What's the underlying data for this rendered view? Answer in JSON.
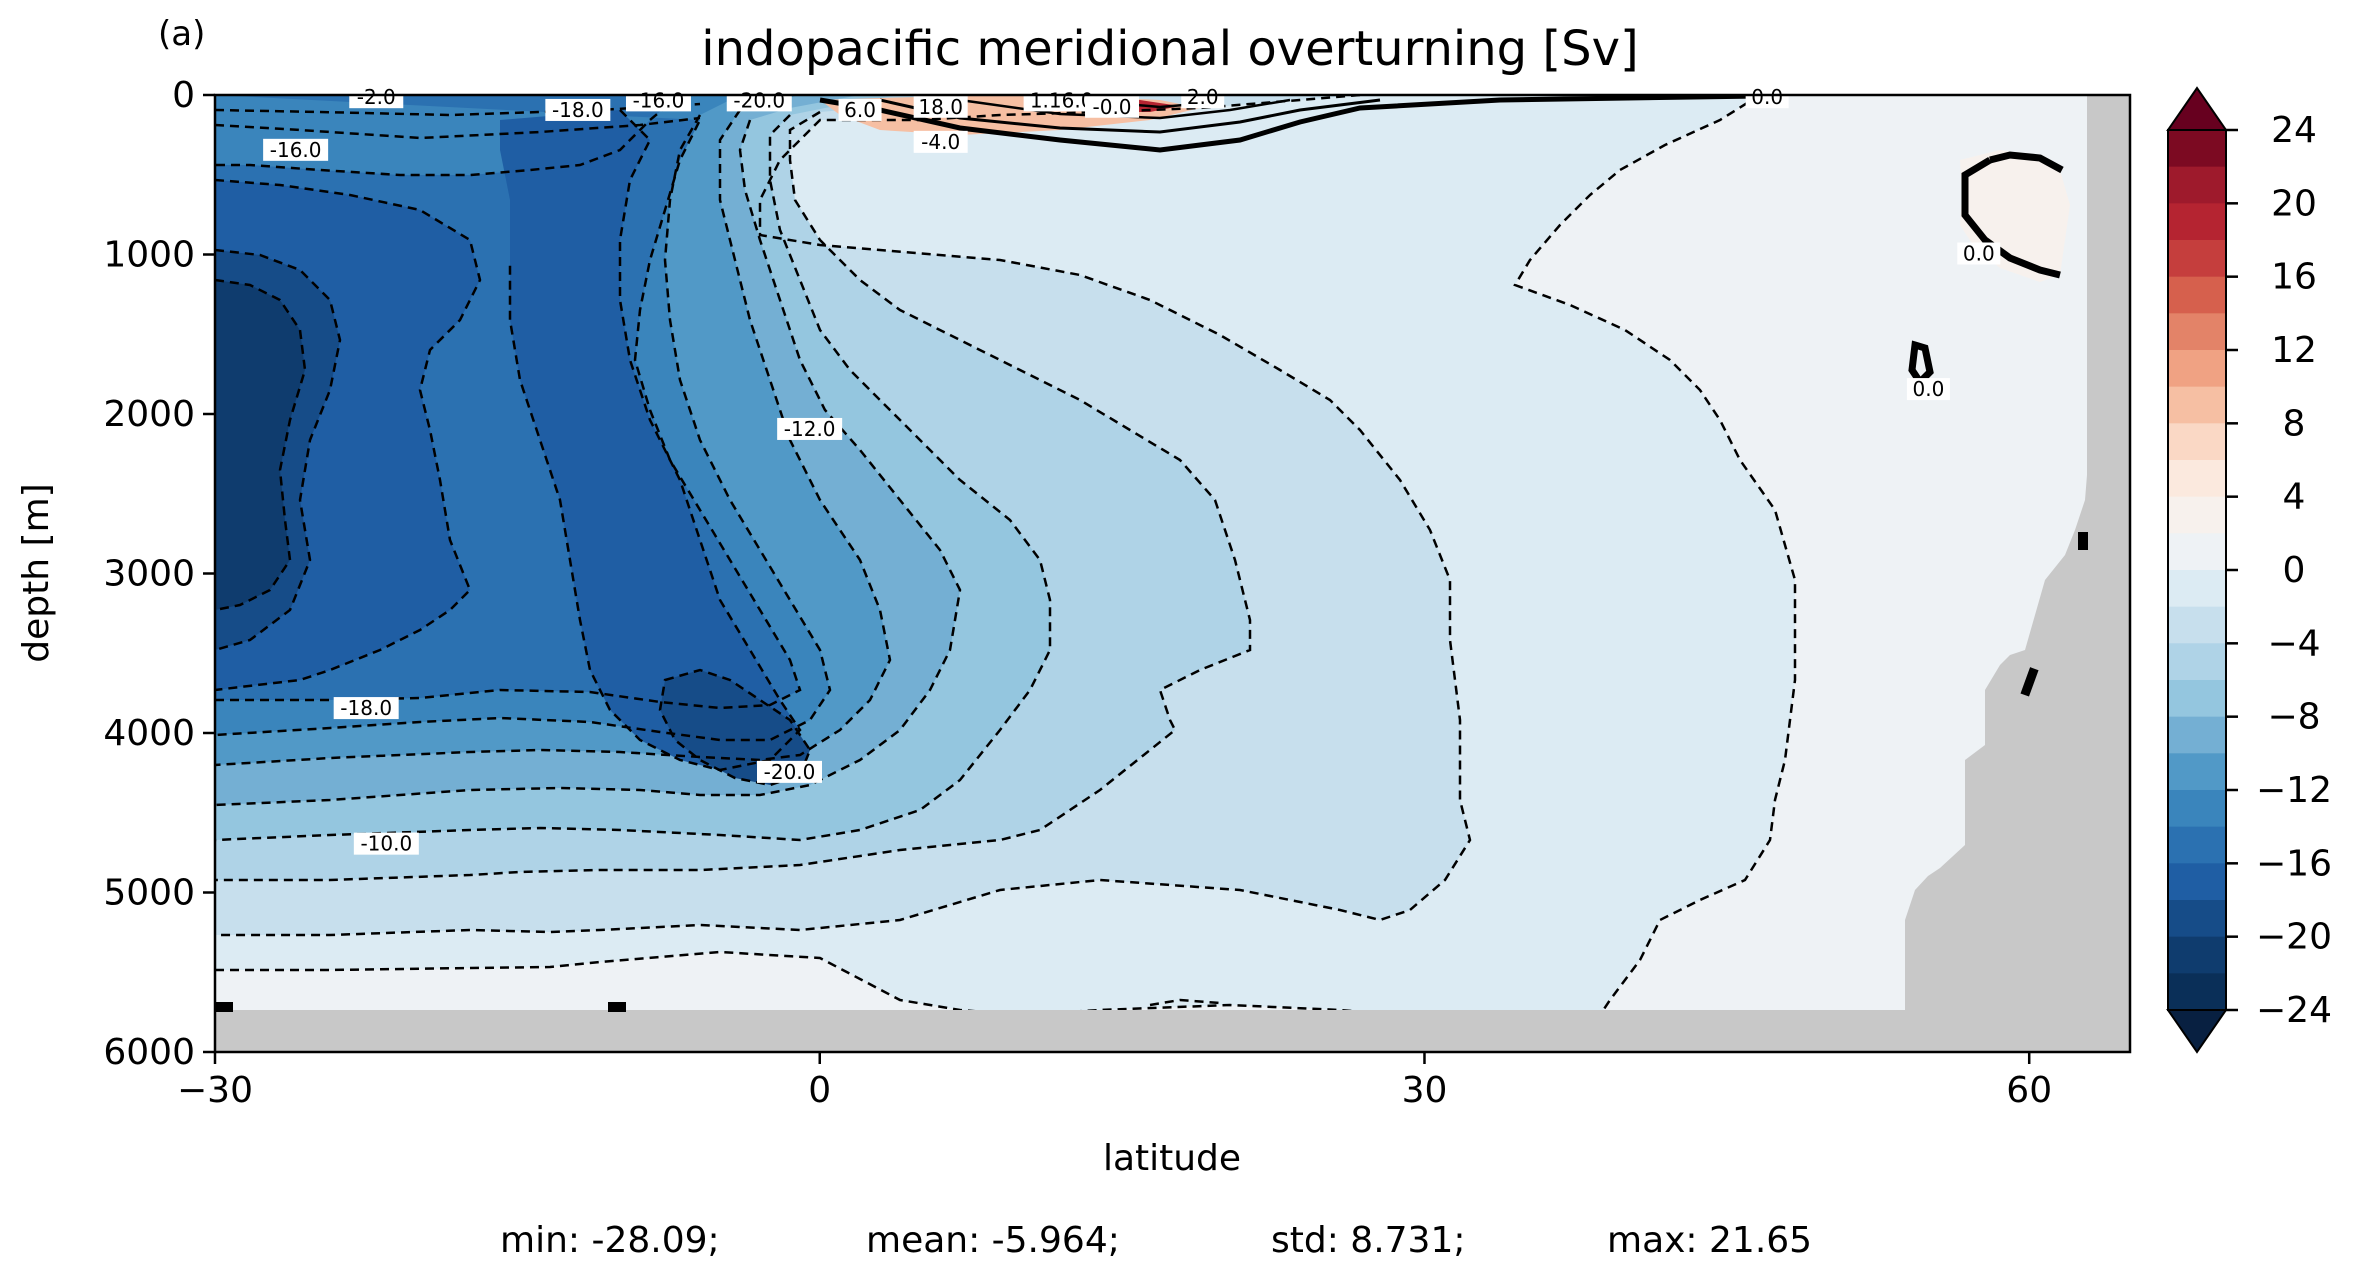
{
  "panel_label": "(a)",
  "chart_data": {
    "type": "heatmap",
    "title": "indopacific meridional overturning [Sv]",
    "xlabel": "latitude",
    "ylabel": "depth [m]",
    "xlim": [
      -30,
      65
    ],
    "ylim": [
      6000,
      0
    ],
    "y_inverted": true,
    "x_ticks": [
      -30,
      0,
      30,
      60
    ],
    "x_tick_labels": [
      "−30",
      "0",
      "30",
      "60"
    ],
    "y_ticks": [
      0,
      1000,
      2000,
      3000,
      4000,
      5000,
      6000
    ],
    "y_tick_labels": [
      "0",
      "1000",
      "2000",
      "3000",
      "4000",
      "5000",
      "6000"
    ],
    "colormap": "RdBu_r",
    "colorbar": {
      "min": -24,
      "max": 24,
      "step": 2,
      "extend": "both",
      "ticks": [
        24,
        20,
        16,
        12,
        8,
        4,
        0,
        -4,
        -8,
        -12,
        -16,
        -20,
        -24
      ],
      "tick_labels": [
        "24",
        "20",
        "16",
        "12",
        "8",
        "4",
        "0",
        "−4",
        "−8",
        "−12",
        "−16",
        "−20",
        "−24"
      ],
      "colors_high_to_low": [
        "#7c0a22",
        "#9e1a2c",
        "#b52431",
        "#c53e3d",
        "#d6604d",
        "#e38368",
        "#f0a283",
        "#f6bfa3",
        "#fad8c5",
        "#fbe9de",
        "#f7f1ed",
        "#eef2f5",
        "#dcebf3",
        "#c7dfed",
        "#afd3e7",
        "#94c6df",
        "#74afd3",
        "#5199c7",
        "#3a85bc",
        "#2b71b1",
        "#1f5ea4",
        "#164c88",
        "#0f3c6e",
        "#0a2f58"
      ]
    },
    "contour_labels": [
      {
        "lat": -22,
        "depth": 20,
        "text": "-2.0"
      },
      {
        "lat": -12,
        "depth": 100,
        "text": "-18.0"
      },
      {
        "lat": -8,
        "depth": 40,
        "text": "-16.0"
      },
      {
        "lat": -3,
        "depth": 40,
        "text": "-20.0"
      },
      {
        "lat": 2,
        "depth": 100,
        "text": "6.0"
      },
      {
        "lat": 6,
        "depth": 80,
        "text": "18.0"
      },
      {
        "lat": 6,
        "depth": 300,
        "text": "-4.0"
      },
      {
        "lat": 12,
        "depth": 40,
        "text": "1.16.0"
      },
      {
        "lat": 14.5,
        "depth": 80,
        "text": "-0.0"
      },
      {
        "lat": 19,
        "depth": 20,
        "text": "2.0"
      },
      {
        "lat": 47,
        "depth": 20,
        "text": "0.0"
      },
      {
        "lat": -26,
        "depth": 350,
        "text": "-16.0"
      },
      {
        "lat": -0.5,
        "depth": 2100,
        "text": "-12.0"
      },
      {
        "lat": -22.5,
        "depth": 3850,
        "text": "-18.0"
      },
      {
        "lat": -1.5,
        "depth": 4250,
        "text": "-20.0"
      },
      {
        "lat": -21.5,
        "depth": 4700,
        "text": "-10.0"
      },
      {
        "lat": 57.5,
        "depth": 1000,
        "text": "0.0"
      },
      {
        "lat": 55,
        "depth": 1850,
        "text": "0.0"
      }
    ],
    "stats": {
      "min": "min: -28.09;",
      "mean": "mean: -5.964;",
      "std": "std: 8.731;",
      "max": "max: 21.65"
    }
  }
}
